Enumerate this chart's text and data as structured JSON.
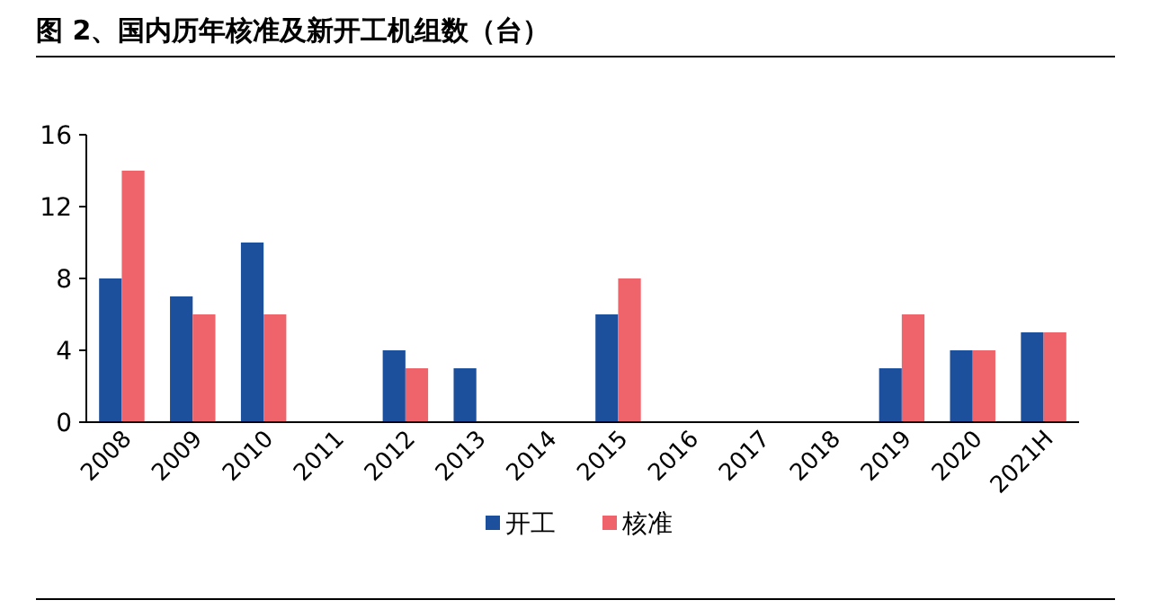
{
  "chart_data": {
    "type": "bar",
    "title": "图 2、国内历年核准及新开工机组数（台）",
    "categories": [
      "2008",
      "2009",
      "2010",
      "2011",
      "2012",
      "2013",
      "2014",
      "2015",
      "2016",
      "2017",
      "2018",
      "2019",
      "2020",
      "2021H"
    ],
    "series": [
      {
        "name": "开工",
        "color": "#1c4f9c",
        "values": [
          8,
          7,
          10,
          null,
          4,
          3,
          null,
          6,
          null,
          null,
          null,
          3,
          4,
          5
        ]
      },
      {
        "name": "核准",
        "color": "#ef646b",
        "values": [
          14,
          6,
          6,
          null,
          3,
          null,
          null,
          8,
          null,
          null,
          null,
          6,
          4,
          5
        ]
      }
    ],
    "ylim": [
      0,
      16
    ],
    "yticks": [
      0,
      4,
      8,
      12,
      16
    ],
    "grid": false,
    "legend": "bottom"
  }
}
